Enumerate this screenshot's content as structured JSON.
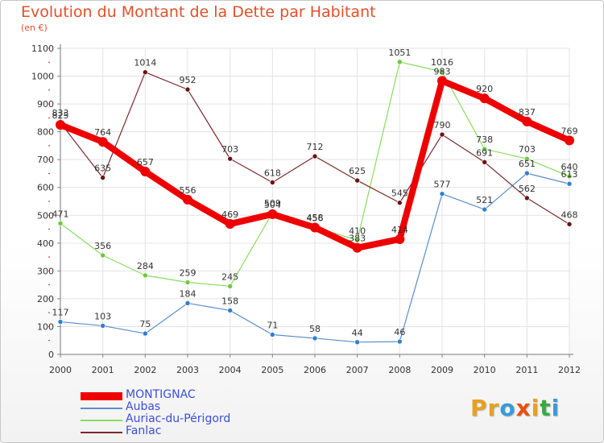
{
  "header": {
    "title": "Evolution du Montant de la Dette par Habitant",
    "subtitle": "(en €)"
  },
  "logo": {
    "letters": [
      "P",
      "r",
      "o",
      "x",
      "i",
      "t",
      "i"
    ],
    "colors": [
      "#e8a020",
      "#e8a020",
      "#3a9ad8",
      "#e85010",
      "#e8a020",
      "#3aa848",
      "#3a9ad8"
    ]
  },
  "chart_data": {
    "type": "line",
    "x": [
      "2000",
      "2001",
      "2002",
      "2003",
      "2004",
      "2005",
      "2006",
      "2007",
      "2008",
      "2009",
      "2010",
      "2011",
      "2012"
    ],
    "ylim": [
      0,
      1100
    ],
    "yticks": [
      "0",
      "100",
      "200",
      "300",
      "400",
      "500",
      "600",
      "700",
      "800",
      "900",
      "1000",
      "1100"
    ],
    "grid": true,
    "legend_position": "bottom-left",
    "series": [
      {
        "name": "Aubas",
        "color": "#5a8ec8",
        "dot": "#2f7fcf",
        "width": 1.2,
        "values": [
          117,
          103,
          75,
          184,
          158,
          71,
          58,
          44,
          46,
          577,
          521,
          651,
          613
        ],
        "labels": [
          "117",
          "103",
          "75",
          "184",
          "158",
          "71",
          "58",
          "44",
          "46",
          "577",
          "521",
          "651",
          "613"
        ]
      },
      {
        "name": "Auriac-du-Périgord",
        "color": "#88dc60",
        "dot": "#6cc83c",
        "width": 1.2,
        "values": [
          471,
          356,
          284,
          259,
          245,
          509,
          458,
          410,
          1051,
          1016,
          738,
          703,
          640
        ],
        "labels": [
          "471",
          "356",
          "284",
          "259",
          "245",
          "509",
          "458",
          "410",
          "1051",
          "1016",
          "738",
          "703",
          "640"
        ]
      },
      {
        "name": "Fanlac",
        "color": "#7a2a2a",
        "dot": "#6a1414",
        "width": 1.2,
        "values": [
          833,
          635,
          1014,
          952,
          703,
          618,
          712,
          625,
          545,
          790,
          691,
          562,
          468
        ],
        "labels": [
          "833",
          "635",
          "1014",
          "952",
          "703",
          "618",
          "712",
          "625",
          "545",
          "790",
          "691",
          "562",
          "468"
        ]
      },
      {
        "name": "MONTIGNAC",
        "color": "#ee0000",
        "dot": "#ee0000",
        "width": 8,
        "values": [
          825,
          764,
          657,
          556,
          469,
          504,
          456,
          383,
          414,
          983,
          920,
          837,
          769
        ],
        "labels": [
          "825",
          "764",
          "657",
          "556",
          "469",
          "504",
          "456",
          "383",
          "414",
          "983",
          "920",
          "837",
          "769"
        ]
      }
    ],
    "legend_order": [
      3,
      0,
      1,
      2
    ]
  }
}
